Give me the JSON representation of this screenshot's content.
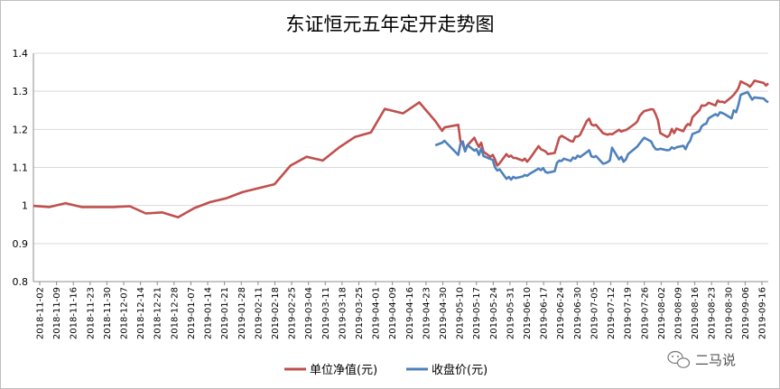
{
  "chart_data": {
    "type": "line",
    "title": "东证恒元五年定开走势图",
    "xlabel": "",
    "ylabel": "",
    "ylim": [
      0.8,
      1.4
    ],
    "yticks": [
      "1.4",
      "1.3",
      "1.2",
      "1.1",
      "1",
      "0.9",
      "0.8"
    ],
    "grid": true,
    "legend": "bottom",
    "x_tick_labels": [
      "2018-11-02",
      "2018-11-09",
      "2018-11-16",
      "2018-11-23",
      "2018-11-30",
      "2018-12-07",
      "2018-12-14",
      "2018-12-21",
      "2018-12-28",
      "2019-01-07",
      "2019-01-14",
      "2019-01-21",
      "2019-01-28",
      "2019-02-11",
      "2019-02-18",
      "2019-02-25",
      "2019-03-04",
      "2019-03-11",
      "2019-03-18",
      "2019-03-25",
      "2019-04-01",
      "2019-04-09",
      "2019-04-16",
      "2019-04-23",
      "2019-04-30",
      "2019-05-10",
      "2019-05-17",
      "2019-05-24",
      "2019-05-31",
      "2019-06-10",
      "2019-06-17",
      "2019-06-24",
      "2019-06-30",
      "2019-07-05",
      "2019-07-12",
      "2019-07-19",
      "2019-07-26",
      "2019-08-02",
      "2019-08-09",
      "2019-08-16",
      "2019-08-23",
      "2019-08-30",
      "2019-09-06",
      "2019-09-16"
    ],
    "series": [
      {
        "name": "单位净值(元)",
        "color": "#c0504d",
        "x": [
          "2018-11-02",
          "2018-11-09",
          "2018-11-16",
          "2018-11-23",
          "2018-11-30",
          "2018-12-07",
          "2018-12-14",
          "2018-12-21",
          "2018-12-28",
          "2019-01-04",
          "2019-01-11",
          "2019-01-18",
          "2019-01-25",
          "2019-02-01",
          "2019-02-15",
          "2019-02-22",
          "2019-03-01",
          "2019-03-08",
          "2019-03-15",
          "2019-03-22",
          "2019-03-29",
          "2019-04-04",
          "2019-04-12",
          "2019-04-19",
          "2019-04-26",
          "2019-04-29",
          "2019-04-30",
          "2019-05-06",
          "2019-05-07",
          "2019-05-08",
          "2019-05-09",
          "2019-05-10",
          "2019-05-13",
          "2019-05-14",
          "2019-05-15",
          "2019-05-16",
          "2019-05-17",
          "2019-05-20",
          "2019-05-21",
          "2019-05-22",
          "2019-05-23",
          "2019-05-24",
          "2019-05-27",
          "2019-05-28",
          "2019-05-29",
          "2019-05-30",
          "2019-05-31",
          "2019-06-03",
          "2019-06-04",
          "2019-06-05",
          "2019-06-06",
          "2019-06-10",
          "2019-06-11",
          "2019-06-12",
          "2019-06-13",
          "2019-06-14",
          "2019-06-17",
          "2019-06-18",
          "2019-06-19",
          "2019-06-20",
          "2019-06-21",
          "2019-06-24",
          "2019-06-25",
          "2019-06-26",
          "2019-06-27",
          "2019-06-28",
          "2019-07-01",
          "2019-07-02",
          "2019-07-03",
          "2019-07-04",
          "2019-07-05",
          "2019-07-08",
          "2019-07-09",
          "2019-07-10",
          "2019-07-11",
          "2019-07-12",
          "2019-07-15",
          "2019-07-16",
          "2019-07-17",
          "2019-07-18",
          "2019-07-19",
          "2019-07-22",
          "2019-07-23",
          "2019-07-24",
          "2019-07-25",
          "2019-07-26",
          "2019-07-29",
          "2019-07-30",
          "2019-07-31",
          "2019-08-01",
          "2019-08-02",
          "2019-08-05",
          "2019-08-06",
          "2019-08-07",
          "2019-08-08",
          "2019-08-09",
          "2019-08-12",
          "2019-08-13",
          "2019-08-14",
          "2019-08-15",
          "2019-08-16",
          "2019-08-19",
          "2019-08-20",
          "2019-08-21",
          "2019-08-22",
          "2019-08-23",
          "2019-08-26",
          "2019-08-27",
          "2019-08-28",
          "2019-08-29",
          "2019-08-30",
          "2019-09-02",
          "2019-09-03",
          "2019-09-04",
          "2019-09-05",
          "2019-09-06",
          "2019-09-09",
          "2019-09-10",
          "2019-09-11",
          "2019-09-12",
          "2019-09-16",
          "2019-09-17",
          "2019-09-18"
        ],
        "values": [
          0.999,
          0.996,
          1.006,
          0.996,
          0.996,
          0.996,
          0.998,
          0.979,
          0.982,
          0.969,
          0.993,
          1.009,
          1.019,
          1.035,
          1.056,
          1.105,
          1.128,
          1.118,
          1.152,
          1.18,
          1.192,
          1.254,
          1.242,
          1.271,
          1.222,
          1.196,
          1.205,
          1.212,
          1.168,
          1.161,
          1.143,
          1.158,
          1.178,
          1.165,
          1.154,
          1.165,
          1.141,
          1.128,
          1.133,
          1.121,
          1.105,
          1.111,
          1.135,
          1.128,
          1.131,
          1.125,
          1.125,
          1.118,
          1.123,
          1.115,
          1.122,
          1.156,
          1.148,
          1.145,
          1.142,
          1.135,
          1.138,
          1.158,
          1.178,
          1.183,
          1.18,
          1.169,
          1.168,
          1.181,
          1.181,
          1.185,
          1.222,
          1.228,
          1.213,
          1.21,
          1.212,
          1.19,
          1.188,
          1.186,
          1.188,
          1.187,
          1.199,
          1.194,
          1.197,
          1.198,
          1.202,
          1.215,
          1.221,
          1.235,
          1.242,
          1.248,
          1.253,
          1.252,
          1.239,
          1.223,
          1.19,
          1.18,
          1.185,
          1.201,
          1.19,
          1.202,
          1.195,
          1.207,
          1.214,
          1.211,
          1.232,
          1.25,
          1.263,
          1.262,
          1.264,
          1.27,
          1.263,
          1.276,
          1.272,
          1.273,
          1.27,
          1.285,
          1.291,
          1.299,
          1.308,
          1.326,
          1.317,
          1.312,
          1.319,
          1.328,
          1.322,
          1.315,
          1.321
        ]
      },
      {
        "name": "收盘价(元)",
        "color": "#4f81bd",
        "x": [
          "2019-04-26",
          "2019-04-29",
          "2019-04-30",
          "2019-05-06",
          "2019-05-07",
          "2019-05-08",
          "2019-05-09",
          "2019-05-10",
          "2019-05-13",
          "2019-05-14",
          "2019-05-15",
          "2019-05-16",
          "2019-05-17",
          "2019-05-20",
          "2019-05-21",
          "2019-05-22",
          "2019-05-23",
          "2019-05-24",
          "2019-05-27",
          "2019-05-28",
          "2019-05-29",
          "2019-05-30",
          "2019-05-31",
          "2019-06-03",
          "2019-06-04",
          "2019-06-05",
          "2019-06-06",
          "2019-06-10",
          "2019-06-11",
          "2019-06-12",
          "2019-06-13",
          "2019-06-14",
          "2019-06-17",
          "2019-06-18",
          "2019-06-19",
          "2019-06-20",
          "2019-06-21",
          "2019-06-24",
          "2019-06-25",
          "2019-06-26",
          "2019-06-27",
          "2019-06-28",
          "2019-07-01",
          "2019-07-02",
          "2019-07-03",
          "2019-07-04",
          "2019-07-05",
          "2019-07-08",
          "2019-07-09",
          "2019-07-10",
          "2019-07-11",
          "2019-07-12",
          "2019-07-15",
          "2019-07-16",
          "2019-07-17",
          "2019-07-18",
          "2019-07-19",
          "2019-07-22",
          "2019-07-23",
          "2019-07-24",
          "2019-07-25",
          "2019-07-26",
          "2019-07-29",
          "2019-07-30",
          "2019-07-31",
          "2019-08-01",
          "2019-08-02",
          "2019-08-05",
          "2019-08-06",
          "2019-08-07",
          "2019-08-08",
          "2019-08-09",
          "2019-08-12",
          "2019-08-13",
          "2019-08-14",
          "2019-08-15",
          "2019-08-16",
          "2019-08-19",
          "2019-08-20",
          "2019-08-21",
          "2019-08-22",
          "2019-08-23",
          "2019-08-26",
          "2019-08-27",
          "2019-08-28",
          "2019-08-29",
          "2019-08-30",
          "2019-09-02",
          "2019-09-03",
          "2019-09-04",
          "2019-09-05",
          "2019-09-06",
          "2019-09-09",
          "2019-09-10",
          "2019-09-11",
          "2019-09-12",
          "2019-09-16",
          "2019-09-17",
          "2019-09-18"
        ],
        "values": [
          1.158,
          1.165,
          1.17,
          1.133,
          1.162,
          1.168,
          1.142,
          1.159,
          1.144,
          1.148,
          1.133,
          1.15,
          1.13,
          1.122,
          1.12,
          1.1,
          1.092,
          1.095,
          1.07,
          1.075,
          1.068,
          1.075,
          1.072,
          1.076,
          1.08,
          1.078,
          1.083,
          1.097,
          1.093,
          1.098,
          1.088,
          1.086,
          1.09,
          1.112,
          1.118,
          1.117,
          1.123,
          1.117,
          1.126,
          1.123,
          1.131,
          1.127,
          1.14,
          1.145,
          1.129,
          1.127,
          1.13,
          1.11,
          1.111,
          1.114,
          1.118,
          1.152,
          1.121,
          1.128,
          1.115,
          1.121,
          1.135,
          1.15,
          1.155,
          1.163,
          1.171,
          1.178,
          1.168,
          1.156,
          1.148,
          1.147,
          1.149,
          1.145,
          1.146,
          1.153,
          1.149,
          1.153,
          1.157,
          1.148,
          1.162,
          1.17,
          1.188,
          1.195,
          1.208,
          1.213,
          1.215,
          1.229,
          1.24,
          1.236,
          1.245,
          1.243,
          1.24,
          1.229,
          1.25,
          1.245,
          1.264,
          1.291,
          1.298,
          1.288,
          1.278,
          1.284,
          1.281,
          1.275,
          1.271
        ]
      }
    ]
  },
  "watermark": {
    "text": "二马说",
    "icon": "wechat-icon"
  }
}
